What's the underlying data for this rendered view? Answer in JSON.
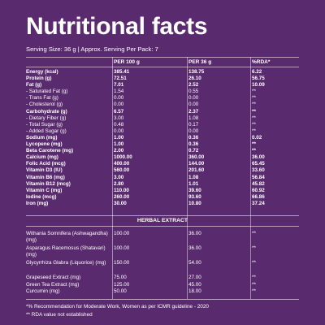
{
  "title": "Nutritional facts",
  "serving_text": "Serving Size: 36 g  |  Approx. Serving Per Pack: 7",
  "headers": {
    "nutrient": "",
    "per100": "PER 100 g",
    "per36": "PER 36 g",
    "rda": "%RDA*"
  },
  "nutrients": [
    {
      "name": "Energy (kcal)",
      "per100": "385.41",
      "per36": "138.75",
      "rda": "6.22",
      "bold": true
    },
    {
      "name": "Protein (g)",
      "per100": "72.51",
      "per36": "26.10",
      "rda": "56.75",
      "bold": true
    },
    {
      "name": "Fat (g)",
      "per100": "7.01",
      "per36": "2.52",
      "rda": "10.09",
      "bold": true
    },
    {
      "name": "- Saturated Fat (g)",
      "per100": "1.54",
      "per36": "0.55",
      "rda": "**",
      "bold": false
    },
    {
      "name": "- Trans Fat (g)",
      "per100": "0.00",
      "per36": "0.00",
      "rda": "**",
      "bold": false
    },
    {
      "name": "- Cholesterol (g)",
      "per100": "0.00",
      "per36": "0.00",
      "rda": "**",
      "bold": false
    },
    {
      "name": "Carbohydrate (g)",
      "per100": "6.57",
      "per36": "2.37",
      "rda": "**",
      "bold": true
    },
    {
      "name": "- Dietary Fiber (g)",
      "per100": "3.00",
      "per36": "1.08",
      "rda": "**",
      "bold": false
    },
    {
      "name": "- Total Sugar (g)",
      "per100": "0.48",
      "per36": "0.17",
      "rda": "**",
      "bold": false
    },
    {
      "name": "- Added Sugar (g)",
      "per100": "0.00",
      "per36": "0.00",
      "rda": "**",
      "bold": false
    },
    {
      "name": "Sodium (mg)",
      "per100": "1.00",
      "per36": "0.36",
      "rda": "0.02",
      "bold": true
    },
    {
      "name": "Lycopene (mg)",
      "per100": "1.00",
      "per36": "0.36",
      "rda": "**",
      "bold": true
    },
    {
      "name": "Beta Carotene (mg)",
      "per100": "2.00",
      "per36": "0.72",
      "rda": "**",
      "bold": true
    },
    {
      "name": "Calcium (mg)",
      "per100": "1000.00",
      "per36": "360.00",
      "rda": "36.00",
      "bold": true
    },
    {
      "name": "Folic Acid (mcg)",
      "per100": "400.00",
      "per36": "144.00",
      "rda": "65.45",
      "bold": true
    },
    {
      "name": "Vitamin D3 (IU)",
      "per100": "560.00",
      "per36": "201.60",
      "rda": "33.60",
      "bold": true
    },
    {
      "name": "Vitamin B6 (mg)",
      "per100": "3.00",
      "per36": "1.08",
      "rda": "56.84",
      "bold": true
    },
    {
      "name": "Vitamin B12 (mcg)",
      "per100": "2.80",
      "per36": "1.01",
      "rda": "45.82",
      "bold": true
    },
    {
      "name": "Vitamin C (mg)",
      "per100": "110.00",
      "per36": "39.60",
      "rda": "60.92",
      "bold": true
    },
    {
      "name": "Iodine (mcg)",
      "per100": "260.00",
      "per36": "93.60",
      "rda": "66.86",
      "bold": true
    },
    {
      "name": "Iron (mg)",
      "per100": "30.00",
      "per36": "10.80",
      "rda": "37.24",
      "bold": true
    }
  ],
  "herbal_title": "HERBAL EXTRACT",
  "herbal": [
    {
      "name": "Withania Somnifera (Ashwagandha) (mg)",
      "per100": "100.00",
      "per36": "36.00",
      "rda": "**",
      "two": true
    },
    {
      "name": "Asparagus Racemosus (Shatavari) (mg)",
      "per100": "100.00",
      "per36": "36.00",
      "rda": "**",
      "two": true
    },
    {
      "name": "Glycyrrhiza Glabra (Liquorice) (mg)",
      "per100": "150.00",
      "per36": "54.00",
      "rda": "**",
      "two": true
    },
    {
      "name": "Grapeseed Extract (mg)",
      "per100": "75.00",
      "per36": "27.00",
      "rda": "**",
      "two": false
    },
    {
      "name": "Green Tea Extract (mg)",
      "per100": "125.00",
      "per36": "45.00",
      "rda": "**",
      "two": false
    },
    {
      "name": "Curcumin (mg)",
      "per100": "50.00",
      "per36": "18.00",
      "rda": "**",
      "two": false
    }
  ],
  "footnotes": [
    "*% Recommendation for Moderate Work, Women as per ICMR guideline - 2020",
    "** RDA value not established"
  ]
}
